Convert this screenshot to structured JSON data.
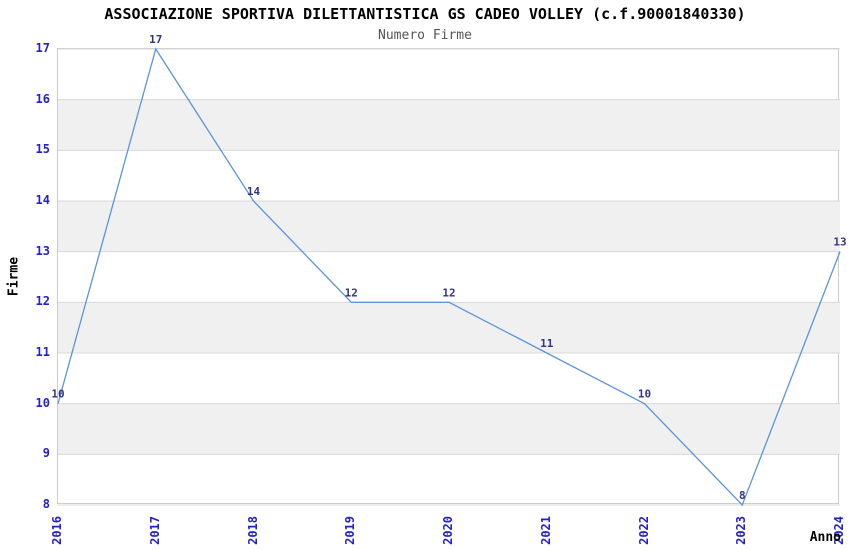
{
  "chart_data": {
    "type": "line",
    "title": "ASSOCIAZIONE SPORTIVA DILETTANTISTICA GS CADEO VOLLEY (c.f.90001840330)",
    "subtitle": "Numero Firme",
    "xlabel": "Anno",
    "ylabel": "Firme",
    "categories": [
      "2016",
      "2017",
      "2018",
      "2019",
      "2020",
      "2021",
      "2022",
      "2023",
      "2024"
    ],
    "values": [
      10,
      17,
      14,
      12,
      12,
      11,
      10,
      8,
      13
    ],
    "ylim": [
      8,
      17
    ],
    "yticks": [
      8,
      9,
      10,
      11,
      12,
      13,
      14,
      15,
      16,
      17
    ],
    "grid": "horizontal gridlines at every integer, no vertical gridlines",
    "legend": "none",
    "layout": {
      "banding": "alternating white/gray horizontal bands between gridlines",
      "data_labels": "value shown above each point",
      "x_tick_rotation": -90
    },
    "colors": {
      "line": "#5c94da",
      "tick_label": "#2222cc",
      "data_label": "#333388",
      "band_gray": "#f0f0f0",
      "gridline": "#d8d8d8",
      "border": "#cccccc",
      "title": "#000000",
      "subtitle": "#555555",
      "axis_label": "#000000",
      "background": "#ffffff"
    }
  }
}
